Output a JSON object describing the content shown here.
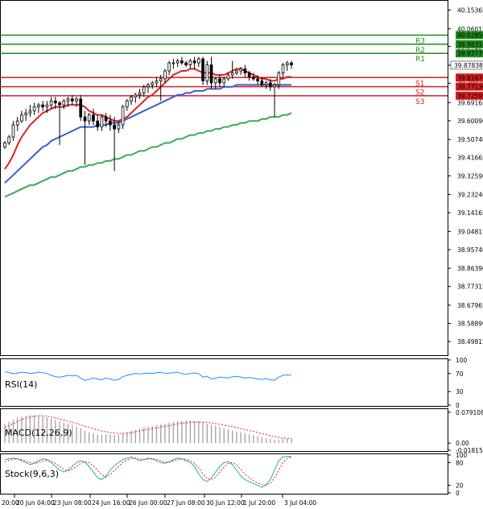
{
  "chart_data": [
    {
      "type": "candlestick",
      "panel": "price",
      "ylim": [
        38.43,
        40.2
      ],
      "yticks": [
        "40.15365",
        "40.06015",
        "39.97230",
        "39.87838",
        "39.78820",
        "39.69165",
        "39.60090",
        "39.50740",
        "39.41665",
        "39.32590",
        "39.23240",
        "39.14165",
        "39.04815",
        "38.95740",
        "38.86390",
        "38.77315",
        "38.67965",
        "38.58890",
        "38.49815"
      ],
      "xticks": [
        "20 Jun 04:00",
        "23 Jun 08:00",
        "24 Jun 16:00",
        "26 Jun 00:00",
        "27 Jun 08:00",
        "30 Jun 12:00",
        "1 Jul 20:00",
        "3 Jul 04:00"
      ],
      "x_first_label": "20:00",
      "current_price": {
        "label": "39.87838",
        "value": 39.8784
      },
      "levels": [
        {
          "name": "R3",
          "label": "40.02850",
          "value": 40.0285,
          "color": "#1e8c1e"
        },
        {
          "name": "R2",
          "label": "39.98310",
          "value": 39.9831,
          "color": "#1e8c1e"
        },
        {
          "name": "R1",
          "label": "39.93770",
          "value": 39.9377,
          "color": "#1e8c1e"
        },
        {
          "name": "S1",
          "label": "39.81670",
          "value": 39.8167,
          "color": "#d42020"
        },
        {
          "name": "S2",
          "label": "39.77130",
          "value": 39.7713,
          "color": "#d42020"
        },
        {
          "name": "S3",
          "label": "39.72590",
          "value": 39.7259,
          "color": "#d42020"
        }
      ],
      "candles": [
        [
          39.47,
          39.5,
          39.46,
          39.49
        ],
        [
          39.49,
          39.53,
          39.48,
          39.52
        ],
        [
          39.52,
          39.6,
          39.5,
          39.58
        ],
        [
          39.58,
          39.62,
          39.55,
          39.6
        ],
        [
          39.6,
          39.65,
          39.59,
          39.63
        ],
        [
          39.63,
          39.66,
          39.6,
          39.64
        ],
        [
          39.64,
          39.68,
          39.62,
          39.65
        ],
        [
          39.65,
          39.69,
          39.63,
          39.67
        ],
        [
          39.67,
          39.69,
          39.64,
          39.68
        ],
        [
          39.68,
          39.7,
          39.65,
          39.67
        ],
        [
          39.67,
          39.7,
          39.64,
          39.68
        ],
        [
          39.68,
          39.72,
          39.66,
          39.7
        ],
        [
          39.7,
          39.72,
          39.66,
          39.69
        ],
        [
          39.69,
          39.7,
          39.48,
          39.68
        ],
        [
          39.68,
          39.71,
          39.66,
          39.7
        ],
        [
          39.7,
          39.72,
          39.67,
          39.71
        ],
        [
          39.71,
          39.73,
          39.68,
          39.7
        ],
        [
          39.7,
          39.72,
          39.67,
          39.71
        ],
        [
          39.71,
          39.73,
          39.6,
          39.62
        ],
        [
          39.62,
          39.65,
          39.38,
          39.6
        ],
        [
          39.6,
          39.64,
          39.58,
          39.63
        ],
        [
          39.63,
          39.66,
          39.58,
          39.6
        ],
        [
          39.6,
          39.63,
          39.55,
          39.57
        ],
        [
          39.57,
          39.63,
          39.55,
          39.62
        ],
        [
          39.62,
          39.64,
          39.57,
          39.6
        ],
        [
          39.6,
          39.63,
          39.55,
          39.58
        ],
        [
          39.58,
          39.62,
          39.35,
          39.56
        ],
        [
          39.56,
          39.6,
          39.54,
          39.58
        ],
        [
          39.58,
          39.68,
          39.56,
          39.67
        ],
        [
          39.67,
          39.71,
          39.65,
          39.7
        ],
        [
          39.7,
          39.73,
          39.68,
          39.72
        ],
        [
          39.72,
          39.74,
          39.69,
          39.73
        ],
        [
          39.73,
          39.76,
          39.71,
          39.74
        ],
        [
          39.74,
          39.78,
          39.72,
          39.77
        ],
        [
          39.77,
          39.79,
          39.74,
          39.78
        ],
        [
          39.78,
          39.8,
          39.76,
          39.79
        ],
        [
          39.79,
          39.82,
          39.77,
          39.8
        ],
        [
          39.8,
          39.83,
          39.7,
          39.81
        ],
        [
          39.81,
          39.86,
          39.79,
          39.85
        ],
        [
          39.85,
          39.9,
          39.83,
          39.89
        ],
        [
          39.89,
          39.91,
          39.86,
          39.89
        ],
        [
          39.89,
          39.91,
          39.87,
          39.9
        ],
        [
          39.9,
          39.92,
          39.88,
          39.89
        ],
        [
          39.89,
          39.9,
          39.87,
          39.88
        ],
        [
          39.88,
          39.91,
          39.86,
          39.9
        ],
        [
          39.9,
          39.92,
          39.86,
          39.89
        ],
        [
          39.89,
          39.92,
          39.87,
          39.91
        ],
        [
          39.91,
          39.92,
          39.78,
          39.8
        ],
        [
          39.8,
          39.9,
          39.78,
          39.88
        ],
        [
          39.88,
          39.92,
          39.76,
          39.79
        ],
        [
          39.79,
          39.82,
          39.76,
          39.81
        ],
        [
          39.81,
          39.83,
          39.77,
          39.79
        ],
        [
          39.79,
          39.82,
          39.77,
          39.81
        ],
        [
          39.81,
          39.84,
          39.8,
          39.83
        ],
        [
          39.83,
          39.9,
          39.81,
          39.84
        ],
        [
          39.84,
          39.86,
          39.83,
          39.85
        ],
        [
          39.85,
          39.87,
          39.83,
          39.86
        ],
        [
          39.86,
          39.88,
          39.82,
          39.84
        ],
        [
          39.84,
          39.85,
          39.8,
          39.82
        ],
        [
          39.82,
          39.84,
          39.8,
          39.81
        ],
        [
          39.81,
          39.83,
          39.78,
          39.8
        ],
        [
          39.8,
          39.82,
          39.77,
          39.78
        ],
        [
          39.78,
          39.8,
          39.76,
          39.79
        ],
        [
          39.79,
          39.81,
          39.75,
          39.77
        ],
        [
          39.77,
          39.79,
          39.62,
          39.78
        ],
        [
          39.78,
          39.85,
          39.76,
          39.84
        ],
        [
          39.84,
          39.89,
          39.82,
          39.88
        ],
        [
          39.88,
          39.9,
          39.85,
          39.89
        ],
        [
          39.89,
          39.9,
          39.86,
          39.88
        ]
      ],
      "series": [
        {
          "name": "",
          "color": "#e02020",
          "values": [
            39.36,
            39.39,
            39.43,
            39.48,
            39.52,
            39.55,
            39.58,
            39.6,
            39.62,
            39.64,
            39.65,
            39.66,
            39.67,
            39.67,
            39.67,
            39.68,
            39.68,
            39.68,
            39.68,
            39.67,
            39.65,
            39.64,
            39.63,
            39.63,
            39.62,
            39.61,
            39.6,
            39.6,
            39.61,
            39.62,
            39.64,
            39.66,
            39.68,
            39.7,
            39.72,
            39.73,
            39.75,
            39.77,
            39.79,
            39.81,
            39.83,
            39.84,
            39.85,
            39.85,
            39.86,
            39.86,
            39.85,
            39.84,
            39.84,
            39.84,
            39.83,
            39.83,
            39.83,
            39.84,
            39.85,
            39.86,
            39.86,
            39.85,
            39.84,
            39.83,
            39.82,
            39.81,
            39.81,
            39.8,
            39.8,
            39.81,
            39.81,
            39.82,
            39.82
          ]
        },
        {
          "name": "",
          "color": "#3a5fcd",
          "values": [
            39.29,
            39.31,
            39.33,
            39.35,
            39.37,
            39.39,
            39.41,
            39.43,
            39.45,
            39.47,
            39.48,
            39.5,
            39.51,
            39.52,
            39.53,
            39.54,
            39.55,
            39.56,
            39.57,
            39.57,
            39.57,
            39.57,
            39.58,
            39.58,
            39.58,
            39.59,
            39.59,
            39.59,
            39.6,
            39.61,
            39.62,
            39.63,
            39.64,
            39.65,
            39.66,
            39.67,
            39.68,
            39.69,
            39.7,
            39.71,
            39.72,
            39.73,
            39.73,
            39.74,
            39.74,
            39.75,
            39.75,
            39.75,
            39.76,
            39.76,
            39.76,
            39.76,
            39.77,
            39.77,
            39.77,
            39.78,
            39.78,
            39.78,
            39.78,
            39.78,
            39.78,
            39.78,
            39.78,
            39.78,
            39.78,
            39.78,
            39.78,
            39.78,
            39.78
          ]
        },
        {
          "name": "",
          "color": "#3aaa5c",
          "values": [
            39.22,
            39.23,
            39.24,
            39.25,
            39.26,
            39.27,
            39.28,
            39.28,
            39.29,
            39.3,
            39.31,
            39.32,
            39.32,
            39.33,
            39.34,
            39.35,
            39.35,
            39.36,
            39.37,
            39.37,
            39.38,
            39.38,
            39.39,
            39.39,
            39.4,
            39.4,
            39.41,
            39.41,
            39.42,
            39.43,
            39.43,
            39.44,
            39.45,
            39.45,
            39.46,
            39.47,
            39.47,
            39.48,
            39.49,
            39.49,
            39.5,
            39.51,
            39.51,
            39.52,
            39.53,
            39.53,
            39.54,
            39.54,
            39.55,
            39.55,
            39.56,
            39.56,
            39.57,
            39.57,
            39.58,
            39.58,
            39.59,
            39.59,
            39.6,
            39.6,
            39.6,
            39.61,
            39.61,
            39.62,
            39.62,
            39.62,
            39.63,
            39.63,
            39.64
          ]
        }
      ]
    },
    {
      "type": "line",
      "panel": "rsi",
      "title": "RSI(14)",
      "ylim": [
        0,
        100
      ],
      "yticks": [
        "100",
        "70",
        "30",
        "0"
      ],
      "series": [
        {
          "name": "",
          "color": "#1e90ff",
          "values": [
            74,
            72,
            70,
            71,
            73,
            72,
            70,
            71,
            73,
            72,
            70,
            66,
            63,
            62,
            64,
            66,
            65,
            66,
            60,
            55,
            57,
            60,
            58,
            56,
            60,
            58,
            55,
            57,
            63,
            66,
            68,
            70,
            69,
            70,
            71,
            70,
            72,
            73,
            70,
            71,
            72,
            73,
            70,
            68,
            70,
            71,
            70,
            62,
            64,
            58,
            60,
            62,
            61,
            60,
            63,
            64,
            62,
            60,
            61,
            60,
            58,
            57,
            59,
            56,
            55,
            62,
            66,
            67,
            66
          ]
        }
      ]
    },
    {
      "type": "bar",
      "panel": "macd",
      "title": "MACD(12,26,9)",
      "yticks": [
        "0.079108",
        "0.00",
        "-0.018159"
      ],
      "ylim": [
        -0.018159,
        0.085
      ],
      "series": [
        {
          "name": "",
          "color": "#a0a0a0",
          "values": [
            0.05,
            0.055,
            0.06,
            0.065,
            0.068,
            0.07,
            0.072,
            0.071,
            0.07,
            0.068,
            0.066,
            0.063,
            0.06,
            0.056,
            0.053,
            0.05,
            0.047,
            0.043,
            0.038,
            0.032,
            0.028,
            0.025,
            0.023,
            0.022,
            0.022,
            0.022,
            0.021,
            0.022,
            0.025,
            0.028,
            0.031,
            0.034,
            0.037,
            0.04,
            0.042,
            0.044,
            0.046,
            0.048,
            0.05,
            0.052,
            0.054,
            0.056,
            0.057,
            0.058,
            0.058,
            0.057,
            0.056,
            0.053,
            0.05,
            0.047,
            0.044,
            0.041,
            0.038,
            0.035,
            0.032,
            0.03,
            0.028,
            0.025,
            0.023,
            0.02,
            0.017,
            0.014,
            0.012,
            0.01,
            0.009,
            0.009,
            0.01,
            0.011,
            0.012
          ]
        },
        {
          "name": "",
          "color": "#e02020",
          "values": [
            0.04,
            0.045,
            0.05,
            0.055,
            0.06,
            0.064,
            0.067,
            0.069,
            0.07,
            0.07,
            0.069,
            0.067,
            0.065,
            0.062,
            0.059,
            0.056,
            0.053,
            0.05,
            0.047,
            0.043,
            0.04,
            0.037,
            0.034,
            0.031,
            0.029,
            0.027,
            0.026,
            0.025,
            0.025,
            0.026,
            0.027,
            0.029,
            0.031,
            0.033,
            0.035,
            0.037,
            0.039,
            0.041,
            0.043,
            0.045,
            0.047,
            0.049,
            0.051,
            0.052,
            0.053,
            0.054,
            0.054,
            0.054,
            0.053,
            0.052,
            0.05,
            0.048,
            0.046,
            0.044,
            0.042,
            0.04,
            0.037,
            0.035,
            0.032,
            0.03,
            0.027,
            0.024,
            0.022,
            0.019,
            0.017,
            0.015,
            0.013,
            0.012,
            0.012
          ]
        }
      ]
    },
    {
      "type": "line",
      "panel": "stoch",
      "title": "Stock(9,6,3)",
      "ylim": [
        0,
        100
      ],
      "yticks": [
        "100",
        "80",
        "20",
        "0"
      ],
      "series": [
        {
          "name": "",
          "color": "#20b2aa",
          "values": [
            88,
            90,
            92,
            90,
            85,
            80,
            75,
            78,
            85,
            90,
            88,
            80,
            70,
            60,
            55,
            60,
            70,
            80,
            85,
            82,
            70,
            55,
            40,
            35,
            45,
            60,
            72,
            80,
            88,
            92,
            95,
            90,
            85,
            88,
            92,
            90,
            85,
            80,
            78,
            82,
            88,
            92,
            90,
            85,
            80,
            70,
            50,
            35,
            30,
            40,
            55,
            70,
            80,
            82,
            75,
            60,
            45,
            35,
            30,
            25,
            20,
            15,
            22,
            35,
            60,
            85,
            95,
            97,
            95
          ]
        },
        {
          "name": "",
          "color": "#e02020",
          "values": [
            82,
            86,
            89,
            90,
            88,
            84,
            80,
            78,
            80,
            84,
            86,
            84,
            78,
            70,
            62,
            58,
            62,
            70,
            78,
            82,
            80,
            72,
            60,
            48,
            42,
            48,
            60,
            70,
            80,
            87,
            91,
            92,
            90,
            88,
            89,
            90,
            89,
            85,
            82,
            81,
            84,
            88,
            90,
            89,
            85,
            78,
            66,
            50,
            38,
            35,
            42,
            55,
            68,
            78,
            80,
            74,
            62,
            50,
            40,
            32,
            26,
            22,
            20,
            26,
            40,
            60,
            80,
            92,
            95
          ]
        }
      ]
    }
  ]
}
